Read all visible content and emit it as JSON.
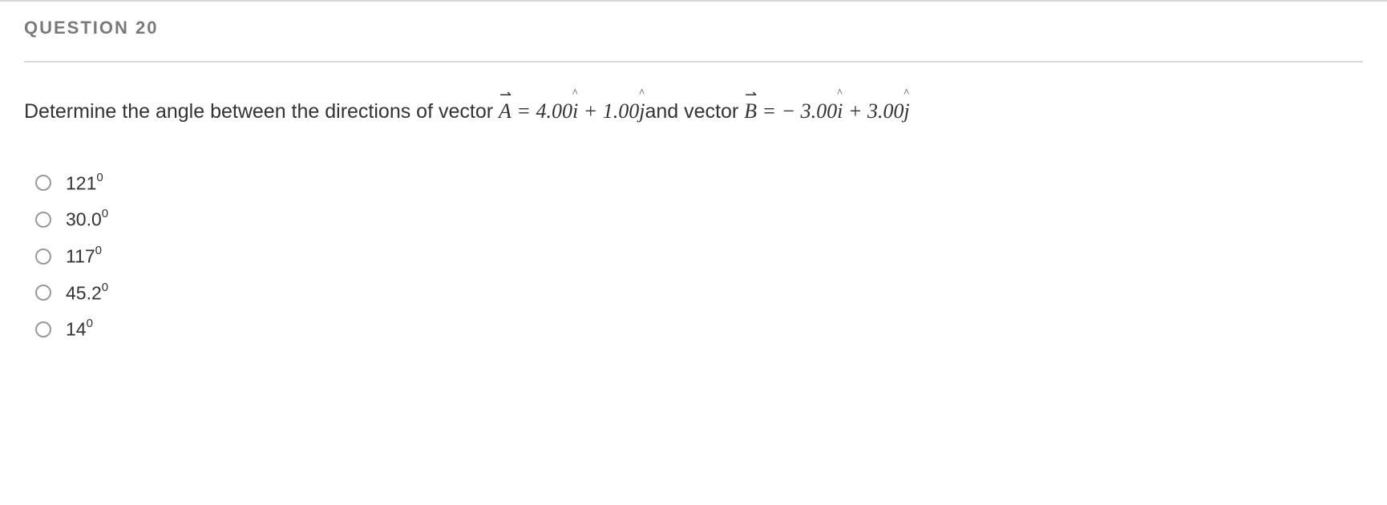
{
  "header": {
    "title": "QUESTION 20"
  },
  "question": {
    "prefix": "Determine the angle between the directions of vector ",
    "vectorA_sym": "A",
    "eqA": "= 4.00",
    "ihat": "i",
    "plus": " + 1.00",
    "jhat": "j",
    "mid": "and vector ",
    "vectorB_sym": "B",
    "eqB": "= − 3.00",
    "ihat2": "i",
    "plus2": " + 3.00",
    "jhat2": "j"
  },
  "options": [
    {
      "value": "121",
      "unit": "0"
    },
    {
      "value": "30.0",
      "unit": "0"
    },
    {
      "value": "117",
      "unit": "0"
    },
    {
      "value": "45.2",
      "unit": "0"
    },
    {
      "value": "14",
      "unit": "0"
    }
  ],
  "styling": {
    "header_color": "#7a7a7a",
    "text_color": "#333333",
    "divider_color": "#d8d8d8",
    "radio_border": "#999999",
    "background": "#ffffff",
    "header_fontsize": 22,
    "body_fontsize": 25,
    "option_fontsize": 23
  }
}
